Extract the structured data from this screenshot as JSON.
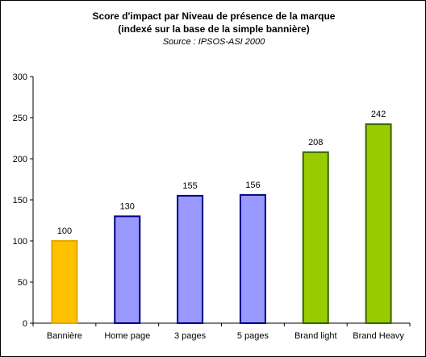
{
  "chart_data": {
    "type": "bar",
    "title": "Score d'impact par Niveau de présence de la marque",
    "subtitle": "(indexé sur la base de la simple bannière)",
    "source": "Source : IPSOS-ASI 2000",
    "categories": [
      "Bannière",
      "Home page",
      "3 pages",
      "5 pages",
      "Brand light",
      "Brand Heavy"
    ],
    "values": [
      100,
      130,
      155,
      156,
      208,
      242
    ],
    "data_labels": [
      "100",
      "130",
      "155",
      "156",
      "208",
      "242"
    ],
    "y_ticks": [
      "0",
      "50",
      "100",
      "150",
      "200",
      "250",
      "300"
    ],
    "ylim": [
      0,
      300
    ],
    "grid": false,
    "legend": "none",
    "bar_colors": [
      "#ffc000",
      "#9999ff",
      "#9999ff",
      "#9999ff",
      "#99cc00",
      "#99cc00"
    ],
    "bar_border_colors": [
      "#e0a800",
      "#000080",
      "#000080",
      "#000080",
      "#336600",
      "#336600"
    ]
  }
}
